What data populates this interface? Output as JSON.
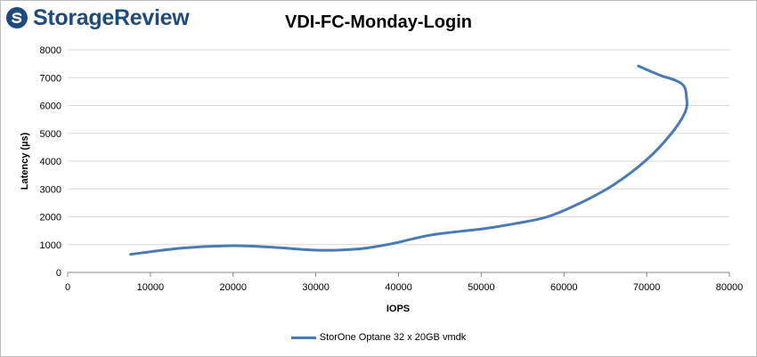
{
  "brand": {
    "name": "StorageReview",
    "logo_icon": "storagereview-logo-icon",
    "color": "#1f4a7d"
  },
  "chart_data": {
    "type": "line",
    "title": "VDI-FC-Monday-Login",
    "xlabel": "IOPS",
    "ylabel": "Latency (µs)",
    "xlim": [
      0,
      80000
    ],
    "ylim": [
      0,
      8000
    ],
    "xticks": [
      0,
      10000,
      20000,
      30000,
      40000,
      50000,
      60000,
      70000,
      80000
    ],
    "yticks": [
      0,
      1000,
      2000,
      3000,
      4000,
      5000,
      6000,
      7000,
      8000
    ],
    "grid": true,
    "legend_position": "bottom",
    "series": [
      {
        "name": "StorOne Optane 32 x 20GB vmdk",
        "color": "#4a7ab3",
        "x": [
          7600,
          14000,
          20000,
          25000,
          30000,
          35000,
          39000,
          44000,
          50000,
          54000,
          58000,
          62000,
          66000,
          70000,
          73000,
          74700,
          74800,
          74500,
          73500,
          71500,
          69000
        ],
        "y": [
          650,
          880,
          960,
          900,
          800,
          840,
          1020,
          1350,
          1560,
          1750,
          2000,
          2500,
          3150,
          4050,
          5000,
          5800,
          6350,
          6700,
          6900,
          7100,
          7420
        ]
      }
    ]
  }
}
